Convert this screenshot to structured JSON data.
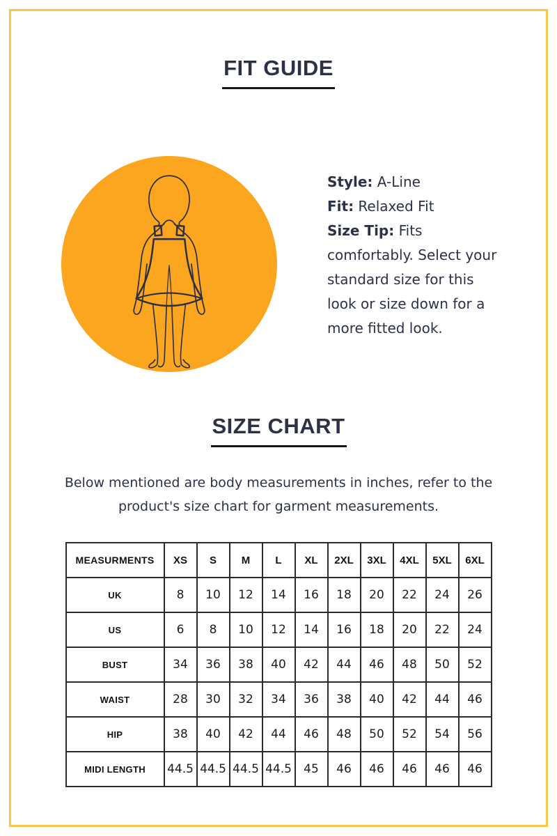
{
  "page": {
    "border_color": "#F5C74D",
    "background_color": "#FFFFFF",
    "accent_navy": "#2D3148"
  },
  "fit_guide": {
    "title": "FIT GUIDE",
    "illustration": {
      "circle_color": "#FCA51F",
      "figure_icon": "a-line-dress-woman-outline"
    },
    "details": [
      {
        "label": "Style:",
        "value": " A-Line"
      },
      {
        "label": "Fit:",
        "value": " Relaxed Fit"
      },
      {
        "label": "Size Tip:",
        "value": " Fits comfortably. Select your standard size for this look or size down for a more fitted look."
      }
    ]
  },
  "size_chart": {
    "title": "SIZE CHART",
    "description_lines": [
      "Below mentioned are body measurements in inches, refer to the",
      "product's size chart for garment measurements."
    ],
    "table": {
      "header": [
        "MEASURMENTS",
        "XS",
        "S",
        "M",
        "L",
        "XL",
        "2XL",
        "3XL",
        "4XL",
        "5XL",
        "6XL"
      ],
      "rows": [
        {
          "label": "UK",
          "values": [
            "8",
            "10",
            "12",
            "14",
            "16",
            "18",
            "20",
            "22",
            "24",
            "26"
          ]
        },
        {
          "label": "US",
          "values": [
            "6",
            "8",
            "10",
            "12",
            "14",
            "16",
            "18",
            "20",
            "22",
            "24"
          ]
        },
        {
          "label": "BUST",
          "values": [
            "34",
            "36",
            "38",
            "40",
            "42",
            "44",
            "46",
            "48",
            "50",
            "52"
          ]
        },
        {
          "label": "WAIST",
          "values": [
            "28",
            "30",
            "32",
            "34",
            "36",
            "38",
            "40",
            "42",
            "44",
            "46"
          ]
        },
        {
          "label": "HIP",
          "values": [
            "38",
            "40",
            "42",
            "44",
            "46",
            "48",
            "50",
            "52",
            "54",
            "56"
          ]
        },
        {
          "label": "MIDI LENGTH",
          "values": [
            "44.5",
            "44.5",
            "44.5",
            "44.5",
            "45",
            "46",
            "46",
            "46",
            "46",
            "46"
          ]
        }
      ]
    }
  }
}
